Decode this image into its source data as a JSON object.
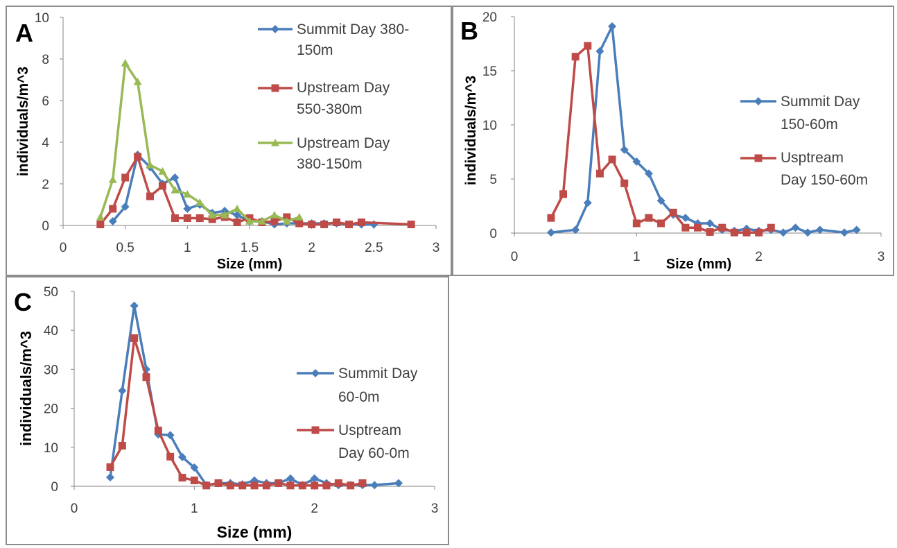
{
  "chart_data": [
    {
      "panel_label": "A",
      "type": "line",
      "xlabel": "Size (mm)",
      "ylabel": "individuals/m^3",
      "xlim": [
        0,
        3
      ],
      "ylim": [
        0,
        10
      ],
      "xticks": [
        "0",
        "0.5",
        "1",
        "1.5",
        "2",
        "2.5",
        "3"
      ],
      "yticks": [
        "0",
        "2",
        "4",
        "6",
        "8",
        "10"
      ],
      "legend_position": "right",
      "series": [
        {
          "name_lines": [
            "Summit Day 380-",
            "150m"
          ],
          "color": "#4a7ebb",
          "marker": "diamond",
          "x": [
            0.4,
            0.5,
            0.6,
            0.7,
            0.8,
            0.9,
            1.0,
            1.1,
            1.2,
            1.3,
            1.4,
            1.5,
            1.6,
            1.7,
            1.8,
            1.9,
            2.0,
            2.1,
            2.2,
            2.3,
            2.4,
            2.5
          ],
          "y": [
            0.2,
            0.9,
            3.4,
            2.8,
            2.0,
            2.3,
            0.8,
            1.0,
            0.6,
            0.7,
            0.5,
            0.2,
            0.2,
            0.05,
            0.1,
            0.1,
            0.1,
            0.1,
            0.1,
            0.05,
            0.05,
            0.05
          ]
        },
        {
          "name_lines": [
            "Upstream Day",
            "550-380m"
          ],
          "color": "#be4b48",
          "marker": "square",
          "x": [
            0.3,
            0.4,
            0.5,
            0.6,
            0.7,
            0.8,
            0.9,
            1.0,
            1.1,
            1.2,
            1.3,
            1.4,
            1.5,
            1.6,
            1.7,
            1.8,
            1.9,
            2.0,
            2.1,
            2.2,
            2.3,
            2.4,
            2.8
          ],
          "y": [
            0.05,
            0.8,
            2.3,
            3.3,
            1.4,
            1.9,
            0.35,
            0.35,
            0.35,
            0.3,
            0.4,
            0.15,
            0.35,
            0.15,
            0.2,
            0.4,
            0.1,
            0.05,
            0.05,
            0.15,
            0.05,
            0.15,
            0.05
          ]
        },
        {
          "name_lines": [
            "Upstream Day",
            "380-150m"
          ],
          "color": "#98b954",
          "marker": "triangle",
          "x": [
            0.3,
            0.4,
            0.5,
            0.6,
            0.7,
            0.8,
            0.9,
            1.0,
            1.1,
            1.2,
            1.3,
            1.4,
            1.5,
            1.6,
            1.7,
            1.8,
            1.9
          ],
          "y": [
            0.4,
            2.2,
            7.8,
            6.9,
            2.9,
            2.6,
            1.7,
            1.5,
            1.1,
            0.5,
            0.5,
            0.8,
            0.2,
            0.2,
            0.5,
            0.2,
            0.4
          ]
        }
      ]
    },
    {
      "panel_label": "B",
      "type": "line",
      "xlabel": "Size (mm)",
      "ylabel": "individuals/m^3",
      "xlim": [
        0,
        3
      ],
      "ylim": [
        0,
        20
      ],
      "xticks": [
        "0",
        "1",
        "2",
        "3"
      ],
      "yticks": [
        "0",
        "5",
        "10",
        "15",
        "20"
      ],
      "legend_position": "right",
      "series": [
        {
          "name_lines": [
            "Summit Day",
            "150-60m"
          ],
          "color": "#4a7ebb",
          "marker": "diamond",
          "x": [
            0.3,
            0.5,
            0.6,
            0.7,
            0.8,
            0.9,
            1.0,
            1.1,
            1.2,
            1.3,
            1.4,
            1.5,
            1.6,
            1.7,
            1.8,
            1.9,
            2.0,
            2.1,
            2.2,
            2.3,
            2.4,
            2.5,
            2.7,
            2.8
          ],
          "y": [
            0.05,
            0.3,
            2.8,
            16.8,
            19.1,
            7.7,
            6.6,
            5.5,
            3.0,
            1.7,
            1.4,
            0.9,
            0.9,
            0.3,
            0.2,
            0.4,
            0.2,
            0.3,
            0.05,
            0.5,
            0.05,
            0.3,
            0.05,
            0.3
          ]
        },
        {
          "name_lines": [
            "Usptream",
            "Day 150-60m"
          ],
          "color": "#be4b48",
          "marker": "square",
          "x": [
            0.3,
            0.4,
            0.5,
            0.6,
            0.7,
            0.8,
            0.9,
            1.0,
            1.1,
            1.2,
            1.3,
            1.4,
            1.5,
            1.6,
            1.7,
            1.8,
            1.9,
            2.0,
            2.1
          ],
          "y": [
            1.4,
            3.6,
            16.3,
            17.3,
            5.5,
            6.8,
            4.6,
            0.9,
            1.4,
            0.9,
            1.9,
            0.5,
            0.5,
            0.1,
            0.5,
            0.05,
            0.05,
            0.05,
            0.5
          ]
        }
      ]
    },
    {
      "panel_label": "C",
      "type": "line",
      "xlabel": "Size (mm)",
      "ylabel": "individuals/m^3",
      "xlim": [
        0,
        3
      ],
      "ylim": [
        0,
        50
      ],
      "xticks": [
        "0",
        "1",
        "2",
        "3"
      ],
      "yticks": [
        "0",
        "10",
        "20",
        "30",
        "40",
        "50"
      ],
      "legend_position": "right",
      "series": [
        {
          "name_lines": [
            "Summit Day",
            "60-0m"
          ],
          "color": "#4a7ebb",
          "marker": "diamond",
          "x": [
            0.3,
            0.4,
            0.5,
            0.6,
            0.7,
            0.8,
            0.9,
            1.0,
            1.1,
            1.2,
            1.3,
            1.4,
            1.5,
            1.6,
            1.7,
            1.8,
            1.9,
            2.0,
            2.1,
            2.2,
            2.3,
            2.4,
            2.5,
            2.7
          ],
          "y": [
            2.3,
            24.5,
            46.3,
            30.0,
            13.3,
            13.1,
            7.5,
            4.8,
            0.3,
            0.8,
            0.8,
            0.5,
            1.5,
            0.8,
            0.8,
            2.0,
            0.3,
            2.0,
            0.8,
            0.3,
            0.3,
            0.3,
            0.3,
            0.8
          ]
        },
        {
          "name_lines": [
            "Usptream",
            "Day 60-0m"
          ],
          "color": "#be4b48",
          "marker": "square",
          "x": [
            0.3,
            0.4,
            0.5,
            0.6,
            0.7,
            0.8,
            0.9,
            1.0,
            1.1,
            1.2,
            1.3,
            1.4,
            1.5,
            1.6,
            1.7,
            1.8,
            1.9,
            2.0,
            2.1,
            2.2,
            2.3,
            2.4
          ],
          "y": [
            4.9,
            10.4,
            38.0,
            28.0,
            14.3,
            7.6,
            2.2,
            1.5,
            0.2,
            0.8,
            0.2,
            0.2,
            0.2,
            0.2,
            0.8,
            0.2,
            0.2,
            0.2,
            0.2,
            0.8,
            0.2,
            0.8
          ]
        }
      ]
    }
  ]
}
